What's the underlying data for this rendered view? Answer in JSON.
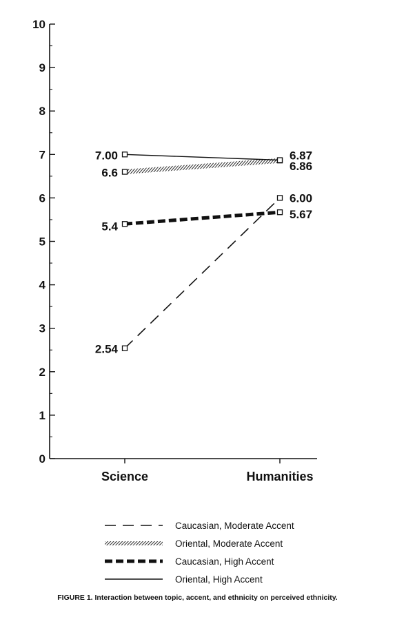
{
  "chart_data": {
    "type": "line",
    "categories": [
      "Science",
      "Humanities"
    ],
    "ylim": [
      0,
      10
    ],
    "yticks": [
      "0",
      "1",
      "2",
      "3",
      "4",
      "5",
      "6",
      "7",
      "8",
      "9",
      "10"
    ],
    "series": [
      {
        "name": "Caucasian, Moderate Accent",
        "values": [
          2.54,
          6.0
        ],
        "labels": [
          "2.54",
          "6.00"
        ],
        "style": "dashed"
      },
      {
        "name": "Oriental, Moderate Accent",
        "values": [
          6.6,
          6.86
        ],
        "labels": [
          "6.6",
          "6.86"
        ],
        "style": "hatched"
      },
      {
        "name": "Caucasian, High Accent",
        "values": [
          5.4,
          5.67
        ],
        "labels": [
          "5.4",
          "5.67"
        ],
        "style": "thick-dashed"
      },
      {
        "name": "Oriental, High Accent",
        "values": [
          7.0,
          6.87
        ],
        "labels": [
          "7.00",
          "6.87"
        ],
        "style": "solid"
      }
    ],
    "legend_position": "bottom",
    "caption": "FIGURE 1. Interaction between topic, accent, and ethnicity on perceived ethnicity."
  }
}
